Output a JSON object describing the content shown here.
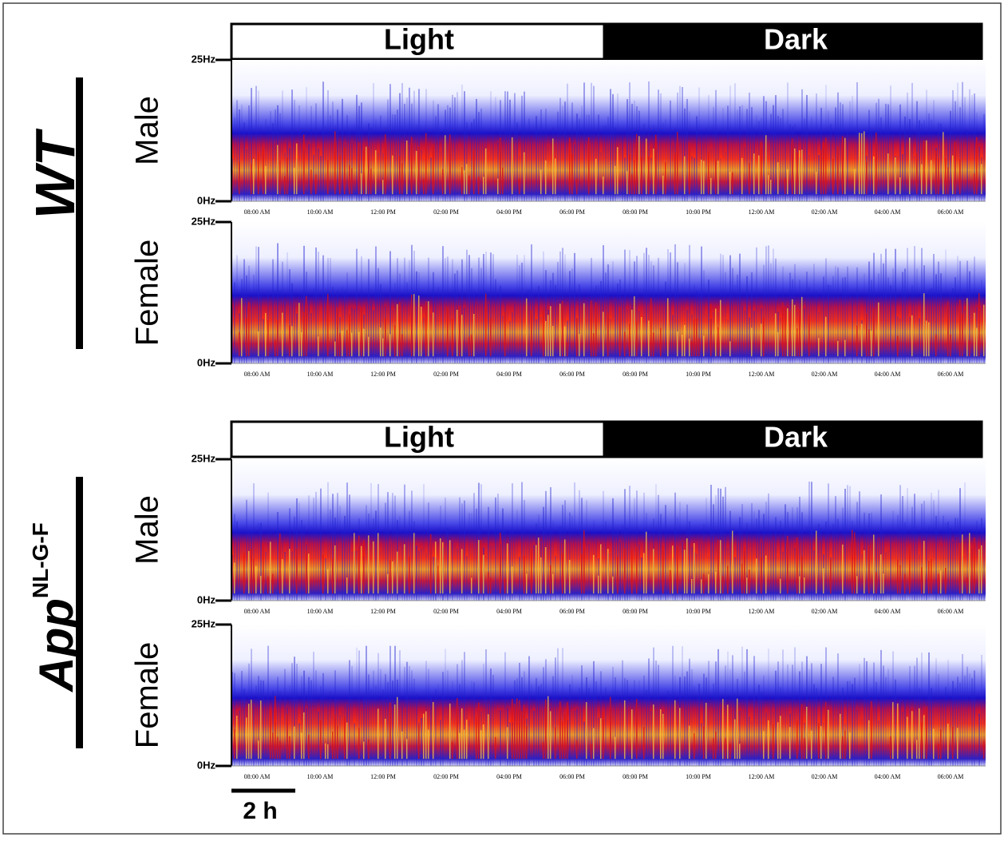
{
  "groups": [
    {
      "label": {
        "name": "WT"
      },
      "light_dark": [
        "Light",
        "Dark"
      ],
      "panels": [
        {
          "label": "Male",
          "y_top": "25Hz",
          "y_bottom": "0Hz"
        },
        {
          "label": "Female",
          "y_top": "25Hz",
          "y_bottom": "0Hz"
        }
      ]
    },
    {
      "label": {
        "name": "App",
        "superscript": "NL-G-F"
      },
      "light_dark": [
        "Light",
        "Dark"
      ],
      "panels": [
        {
          "label": "Male",
          "y_top": "25Hz",
          "y_bottom": "0Hz"
        },
        {
          "label": "Female",
          "y_top": "25Hz",
          "y_bottom": "0Hz"
        }
      ]
    }
  ],
  "time_labels": [
    "08:00 AM",
    "10:00 AM",
    "12:00 PM",
    "02:00 PM",
    "04:00 PM",
    "06:00 PM",
    "08:00 PM",
    "10:00 PM",
    "12:00 AM",
    "02:00 AM",
    "04:00 AM",
    "06:00 AM"
  ],
  "scale_bar": "2 h"
}
